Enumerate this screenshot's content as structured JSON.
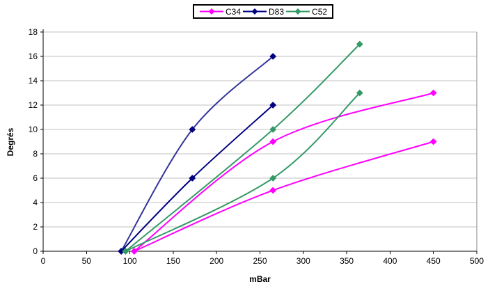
{
  "chart_data": {
    "type": "line",
    "title": "",
    "xlabel": "mBar",
    "ylabel": "Degrés",
    "xlim": [
      0,
      500
    ],
    "ylim": [
      0,
      18
    ],
    "xticks": [
      0,
      50,
      100,
      150,
      200,
      250,
      300,
      350,
      400,
      450,
      500
    ],
    "yticks": [
      0,
      2,
      4,
      6,
      8,
      10,
      12,
      14,
      16,
      18
    ],
    "grid": "horizontal-only",
    "legend_position": "top-center",
    "legend": [
      {
        "label": "C34",
        "color": "#FF00FF"
      },
      {
        "label": "D83",
        "color": "#000080"
      },
      {
        "label": "C52",
        "color": "#339966"
      }
    ],
    "series": [
      {
        "name": "C34-upper",
        "legend_label": "C34",
        "color": "#FF00FF",
        "marker_color": "#FF00FF",
        "smooth": true,
        "points": [
          [
            105,
            0
          ],
          [
            265,
            9
          ],
          [
            450,
            13
          ]
        ]
      },
      {
        "name": "C34-lower",
        "legend_label": "C34",
        "color": "#FF00FF",
        "marker_color": "#FF00FF",
        "smooth": true,
        "points": [
          [
            105,
            0
          ],
          [
            265,
            5
          ],
          [
            450,
            9
          ]
        ]
      },
      {
        "name": "D83-upper",
        "legend_label": "D83",
        "color": "#333399",
        "marker_color": "#000080",
        "smooth": true,
        "points": [
          [
            90,
            0
          ],
          [
            172,
            10
          ],
          [
            265,
            16
          ]
        ]
      },
      {
        "name": "D83-lower",
        "legend_label": "D83",
        "color": "#000080",
        "marker_color": "#000080",
        "smooth": true,
        "points": [
          [
            90,
            0
          ],
          [
            172,
            6
          ],
          [
            265,
            12
          ]
        ]
      },
      {
        "name": "C52-upper",
        "legend_label": "C52",
        "color": "#339966",
        "marker_color": "#339966",
        "smooth": true,
        "points": [
          [
            95,
            0
          ],
          [
            265,
            10
          ],
          [
            365,
            17
          ]
        ]
      },
      {
        "name": "C52-lower",
        "legend_label": "C52",
        "color": "#339966",
        "marker_color": "#339966",
        "smooth": true,
        "points": [
          [
            95,
            0
          ],
          [
            265,
            6
          ],
          [
            365,
            13
          ]
        ]
      }
    ],
    "colors": {
      "gridline": "#C0C0C0",
      "axis": "#000000",
      "plot_border_right": "#808080",
      "background": "#FFFFFF"
    }
  }
}
